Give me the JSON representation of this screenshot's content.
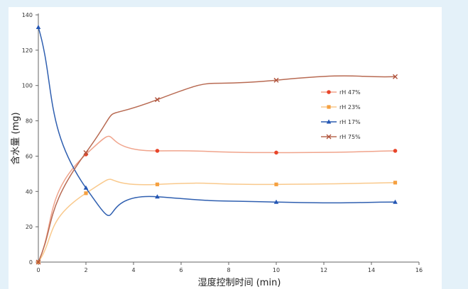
{
  "chart_data": {
    "type": "line",
    "title": "",
    "xlabel": "湿度控制时间 (min)",
    "ylabel": "含水量 (mg)",
    "xlim": [
      0,
      16
    ],
    "ylim": [
      0,
      140
    ],
    "xticks": [
      0,
      2,
      4,
      6,
      8,
      10,
      12,
      14,
      16
    ],
    "yticks": [
      0,
      20,
      40,
      60,
      80,
      100,
      120,
      140
    ],
    "grid": false,
    "legend_position": "right",
    "series": [
      {
        "name": "rH 47%",
        "color": "#f0a48c",
        "marker": "circle",
        "marker_color": "#e8452a",
        "x": [
          0,
          2,
          5,
          10,
          15
        ],
        "y": [
          0,
          61,
          63,
          62,
          63
        ]
      },
      {
        "name": "rH 23%",
        "color": "#f9c98c",
        "marker": "square",
        "marker_color": "#f5a040",
        "x": [
          0,
          2,
          5,
          10,
          15
        ],
        "y": [
          0,
          39,
          44,
          44,
          45
        ]
      },
      {
        "name": "rH 17%",
        "color": "#2f5fb0",
        "marker": "triangle",
        "marker_color": "#2456b4",
        "x": [
          0,
          2,
          5,
          10,
          15
        ],
        "y": [
          133,
          42,
          37,
          34,
          34
        ]
      },
      {
        "name": "rH 75%",
        "color": "#b86a52",
        "marker": "x",
        "marker_color": "#b0513a",
        "x": [
          0,
          2,
          5,
          10,
          15
        ],
        "y": [
          0,
          62,
          92,
          103,
          105
        ]
      }
    ]
  }
}
